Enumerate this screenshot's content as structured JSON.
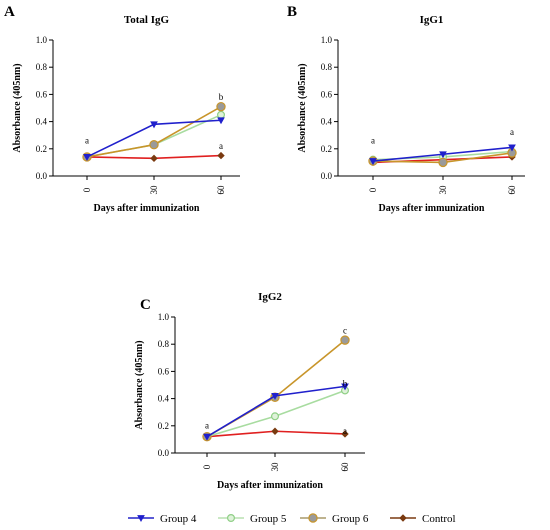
{
  "chart_data": [
    {
      "panel": "A",
      "type": "line",
      "title": "Total IgG",
      "xlabel": "Days after immunization",
      "ylabel": "Absorbance (405nm)",
      "x": [
        0,
        30,
        60
      ],
      "x_ticks": [
        "0",
        "30",
        "60"
      ],
      "ylim": [
        0,
        1.0
      ],
      "y_ticks": [
        "0.0",
        "0.2",
        "0.4",
        "0.6",
        "0.8",
        "1.0"
      ],
      "series": [
        {
          "name": "Group 4",
          "values": [
            0.14,
            0.38,
            0.41
          ]
        },
        {
          "name": "Group 5",
          "values": [
            0.14,
            0.23,
            0.45
          ]
        },
        {
          "name": "Group 6",
          "values": [
            0.14,
            0.23,
            0.51
          ]
        },
        {
          "name": "Control",
          "values": [
            0.14,
            0.13,
            0.15
          ]
        }
      ],
      "annotations": [
        {
          "text": "a",
          "x": 0,
          "y": 0.24
        },
        {
          "text": "b",
          "x": 60,
          "y": 0.56
        },
        {
          "text": "a",
          "x": 60,
          "y": 0.2
        }
      ]
    },
    {
      "panel": "B",
      "type": "line",
      "title": "IgG1",
      "xlabel": "Days after immunization",
      "ylabel": "Absorbance (405nm)",
      "x": [
        0,
        30,
        60
      ],
      "x_ticks": [
        "0",
        "30",
        "60"
      ],
      "ylim": [
        0,
        1.0
      ],
      "y_ticks": [
        "0.0",
        "0.2",
        "0.4",
        "0.6",
        "0.8",
        "1.0"
      ],
      "series": [
        {
          "name": "Group 4",
          "values": [
            0.11,
            0.16,
            0.21
          ]
        },
        {
          "name": "Group 5",
          "values": [
            0.12,
            0.14,
            0.18
          ]
        },
        {
          "name": "Group 6",
          "values": [
            0.11,
            0.1,
            0.17
          ]
        },
        {
          "name": "Control",
          "values": [
            0.1,
            0.12,
            0.14
          ]
        }
      ],
      "annotations": [
        {
          "text": "a",
          "x": 0,
          "y": 0.24
        },
        {
          "text": "a",
          "x": 60,
          "y": 0.3
        }
      ]
    },
    {
      "panel": "C",
      "type": "line",
      "title": "IgG2",
      "xlabel": "Days after immunization",
      "ylabel": "Absorbance (405nm)",
      "x": [
        0,
        30,
        60
      ],
      "x_ticks": [
        "0",
        "30",
        "60"
      ],
      "ylim": [
        0,
        1.0
      ],
      "y_ticks": [
        "0.0",
        "0.2",
        "0.4",
        "0.6",
        "0.8",
        "1.0"
      ],
      "series": [
        {
          "name": "Group 4",
          "values": [
            0.12,
            0.42,
            0.49
          ]
        },
        {
          "name": "Group 5",
          "values": [
            0.12,
            0.27,
            0.46
          ]
        },
        {
          "name": "Group 6",
          "values": [
            0.12,
            0.41,
            0.83
          ]
        },
        {
          "name": "Control",
          "values": [
            0.12,
            0.16,
            0.14
          ]
        }
      ],
      "annotations": [
        {
          "text": "a",
          "x": 0,
          "y": 0.18
        },
        {
          "text": "c",
          "x": 60,
          "y": 0.88
        },
        {
          "text": "b",
          "x": 60,
          "y": 0.49
        },
        {
          "text": "a",
          "x": 60,
          "y": 0.14
        }
      ]
    }
  ],
  "legend": {
    "placement": "bottom",
    "items": [
      {
        "name": "Group 4",
        "color": "#2323c8",
        "marker": "triangle-down"
      },
      {
        "name": "Group 5",
        "color": "#b8e0b0",
        "marker": "circle-open"
      },
      {
        "name": "Group 6",
        "color": "#a89a6a",
        "marker": "circle-gray"
      },
      {
        "name": "Control",
        "color": "#7a3a10",
        "marker": "diamond"
      }
    ]
  },
  "series_styles": {
    "Group 4": {
      "line": "#2020cc",
      "marker": "triangle-down",
      "fill": "#2020cc"
    },
    "Group 5": {
      "line": "#a8dca0",
      "marker": "circle-open",
      "fill": "#dff2da"
    },
    "Group 6": {
      "line": "#c8952a",
      "marker": "circle-gray",
      "fill": "#9a9a9a"
    },
    "Control": {
      "line": "#e02020",
      "marker": "diamond",
      "fill": "#7a3a10"
    }
  }
}
